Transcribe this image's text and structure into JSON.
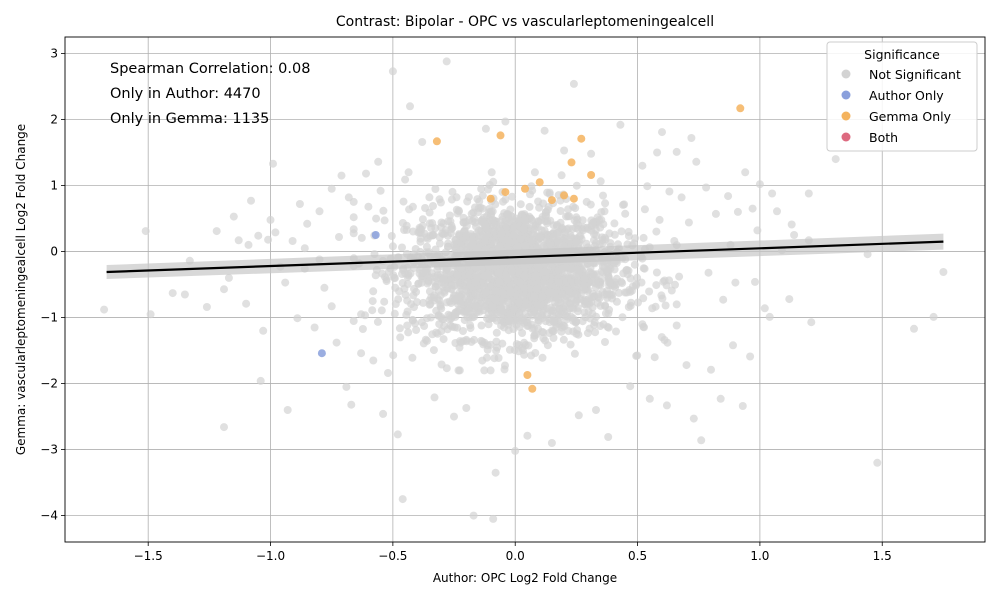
{
  "chart_data": {
    "type": "scatter",
    "title": "Contrast: Bipolar - OPC vs vascularleptomeningealcell",
    "xlabel": "Author: OPC Log2 Fold Change",
    "ylabel": "Gemma: vascularleptomeningealcell Log2 Fold Change",
    "xlim": [
      -1.84,
      1.92
    ],
    "ylim": [
      -4.4,
      3.25
    ],
    "xticks": [
      -1.5,
      -1.0,
      -0.5,
      0.0,
      0.5,
      1.0,
      1.5
    ],
    "xtick_labels": [
      "−1.5",
      "−1.0",
      "−0.5",
      "0.0",
      "0.5",
      "1.0",
      "1.5"
    ],
    "yticks": [
      -4,
      -3,
      -2,
      -1,
      0,
      1,
      2,
      3
    ],
    "ytick_labels": [
      "−4",
      "−3",
      "−2",
      "−1",
      "0",
      "1",
      "2",
      "3"
    ],
    "grid": true,
    "annotations": [
      "Spearman Correlation: 0.08",
      "Only in Author: 4470",
      "Only in Gemma: 1135"
    ],
    "legend": {
      "title": "Significance",
      "position": "top-right",
      "entries": [
        {
          "name": "Not Significant",
          "color": "#d3d3d3"
        },
        {
          "name": "Author Only",
          "color": "#8aa0dc"
        },
        {
          "name": "Gemma Only",
          "color": "#f4b35e"
        },
        {
          "name": "Both",
          "color": "#dd6a80"
        }
      ]
    },
    "regression_line": {
      "x": [
        -1.67,
        1.75
      ],
      "y": [
        -0.31,
        0.15
      ],
      "color": "#000000"
    },
    "series": [
      {
        "name": "Author Only",
        "color": "#8aa0dc",
        "points": [
          [
            -0.57,
            0.25
          ],
          [
            -0.79,
            -1.54
          ]
        ]
      },
      {
        "name": "Gemma Only",
        "color": "#f4b35e",
        "points": [
          [
            -0.32,
            1.67
          ],
          [
            -0.06,
            1.76
          ],
          [
            0.27,
            1.71
          ],
          [
            0.92,
            2.17
          ],
          [
            0.23,
            1.35
          ],
          [
            0.31,
            1.16
          ],
          [
            0.1,
            1.05
          ],
          [
            0.2,
            0.85
          ],
          [
            0.04,
            0.95
          ],
          [
            -0.1,
            0.8
          ],
          [
            0.24,
            0.8
          ],
          [
            0.05,
            -1.87
          ],
          [
            0.07,
            -2.08
          ],
          [
            0.15,
            0.78
          ],
          [
            -0.04,
            0.9
          ]
        ]
      },
      {
        "name": "Not Significant",
        "color": "#d3d3d3",
        "points": [
          [
            -1.68,
            -0.88
          ],
          [
            -1.51,
            0.31
          ],
          [
            -1.49,
            -0.95
          ],
          [
            -1.4,
            -0.63
          ],
          [
            -1.35,
            -0.65
          ],
          [
            -1.33,
            -0.14
          ],
          [
            -1.26,
            -0.84
          ],
          [
            -1.22,
            0.31
          ],
          [
            -1.19,
            -0.57
          ],
          [
            -1.19,
            -2.66
          ],
          [
            -1.17,
            -0.4
          ],
          [
            -1.15,
            0.53
          ],
          [
            -1.13,
            0.17
          ],
          [
            -1.1,
            -0.79
          ],
          [
            -1.09,
            0.1
          ],
          [
            -1.08,
            0.77
          ],
          [
            -1.05,
            0.24
          ],
          [
            -1.04,
            -1.96
          ],
          [
            -1.03,
            -1.2
          ],
          [
            -1.01,
            0.18
          ],
          [
            -1.0,
            0.48
          ],
          [
            -0.99,
            1.33
          ],
          [
            -0.98,
            0.29
          ],
          [
            -0.96,
            -0.23
          ],
          [
            -0.93,
            -2.4
          ],
          [
            -0.91,
            0.16
          ],
          [
            -0.89,
            -1.01
          ],
          [
            -0.88,
            0.72
          ],
          [
            -0.86,
            -0.26
          ],
          [
            -0.85,
            0.42
          ],
          [
            -0.82,
            -1.15
          ],
          [
            -0.8,
            0.61
          ],
          [
            -0.78,
            -0.55
          ],
          [
            -0.75,
            0.95
          ],
          [
            -0.73,
            -1.38
          ],
          [
            -0.71,
            1.15
          ],
          [
            -0.69,
            -2.05
          ],
          [
            -0.67,
            -2.32
          ],
          [
            -0.66,
            0.52
          ],
          [
            -0.63,
            -0.95
          ],
          [
            -0.61,
            1.18
          ],
          [
            -0.58,
            -1.65
          ],
          [
            -0.56,
            1.36
          ],
          [
            -0.54,
            -2.46
          ],
          [
            -0.5,
            2.73
          ],
          [
            -0.48,
            -2.77
          ],
          [
            -0.46,
            -3.75
          ],
          [
            -0.43,
            2.2
          ],
          [
            -0.38,
            1.66
          ],
          [
            -0.33,
            -2.21
          ],
          [
            -0.28,
            2.88
          ],
          [
            -0.25,
            -2.5
          ],
          [
            -0.2,
            -2.37
          ],
          [
            -0.17,
            -4.0
          ],
          [
            -0.12,
            1.86
          ],
          [
            -0.09,
            -4.05
          ],
          [
            -0.08,
            -3.35
          ],
          [
            -0.04,
            1.97
          ],
          [
            0.0,
            -3.02
          ],
          [
            0.05,
            -2.79
          ],
          [
            0.12,
            1.83
          ],
          [
            0.15,
            -2.9
          ],
          [
            0.2,
            1.53
          ],
          [
            0.24,
            2.54
          ],
          [
            0.26,
            -2.48
          ],
          [
            0.31,
            1.48
          ],
          [
            0.33,
            -2.4
          ],
          [
            0.38,
            -2.81
          ],
          [
            0.43,
            1.92
          ],
          [
            0.47,
            -2.04
          ],
          [
            0.52,
            1.3
          ],
          [
            0.55,
            -2.23
          ],
          [
            0.58,
            1.5
          ],
          [
            0.6,
            1.81
          ],
          [
            0.62,
            -2.33
          ],
          [
            0.64,
            -0.59
          ],
          [
            0.66,
            1.51
          ],
          [
            0.68,
            0.82
          ],
          [
            0.7,
            -1.72
          ],
          [
            0.72,
            1.72
          ],
          [
            0.73,
            -2.53
          ],
          [
            0.74,
            1.36
          ],
          [
            0.76,
            -2.86
          ],
          [
            0.78,
            0.97
          ],
          [
            0.8,
            -1.79
          ],
          [
            0.82,
            0.57
          ],
          [
            0.84,
            -2.23
          ],
          [
            0.85,
            -0.73
          ],
          [
            0.87,
            0.84
          ],
          [
            0.89,
            -1.42
          ],
          [
            0.9,
            -0.47
          ],
          [
            0.91,
            0.6
          ],
          [
            0.93,
            -2.34
          ],
          [
            0.94,
            1.2
          ],
          [
            0.96,
            -1.59
          ],
          [
            0.97,
            0.65
          ],
          [
            0.99,
            0.32
          ],
          [
            1.0,
            1.02
          ],
          [
            1.02,
            -0.86
          ],
          [
            1.04,
            -0.99
          ],
          [
            1.05,
            0.88
          ],
          [
            1.07,
            0.61
          ],
          [
            1.09,
            0.02
          ],
          [
            1.12,
            -0.72
          ],
          [
            1.14,
            0.25
          ],
          [
            1.2,
            0.88
          ],
          [
            1.21,
            -1.07
          ],
          [
            1.31,
            1.4
          ],
          [
            1.44,
            -0.04
          ],
          [
            1.48,
            -3.2
          ],
          [
            1.63,
            -1.17
          ],
          [
            1.71,
            -0.99
          ],
          [
            1.75,
            -0.31
          ],
          [
            1.2,
            0.17
          ],
          [
            1.13,
            0.41
          ],
          [
            0.98,
            -0.46
          ],
          [
            0.88,
            0.1
          ],
          [
            0.79,
            -0.32
          ],
          [
            0.71,
            0.44
          ],
          [
            0.66,
            -1.12
          ],
          [
            -0.72,
            0.22
          ],
          [
            -0.8,
            -0.12
          ],
          [
            -0.86,
            0.05
          ],
          [
            -0.94,
            -0.47
          ],
          [
            -0.75,
            -0.83
          ],
          [
            -0.68,
            0.82
          ],
          [
            -0.63,
            -1.54
          ],
          [
            -0.6,
            0.68
          ],
          [
            -0.57,
            -0.36
          ],
          [
            -0.55,
            0.92
          ],
          [
            -0.52,
            -1.84
          ],
          [
            -0.5,
            0.08
          ],
          [
            -0.47,
            -1.3
          ],
          [
            -0.45,
            1.09
          ],
          [
            -0.42,
            -1.61
          ],
          [
            0.56,
            -0.86
          ],
          [
            0.59,
            0.48
          ],
          [
            0.61,
            -1.34
          ],
          [
            0.63,
            0.91
          ],
          [
            0.65,
            0.16
          ],
          [
            0.67,
            -0.38
          ],
          [
            0.54,
            0.99
          ],
          [
            0.57,
            -1.6
          ],
          [
            0.53,
            0.64
          ],
          [
            0.52,
            -1.1
          ]
        ],
        "dense_cloud": {
          "center": [
            0.0,
            -0.3
          ],
          "spread": [
            0.22,
            0.5
          ],
          "count": 2400
        }
      }
    ]
  }
}
